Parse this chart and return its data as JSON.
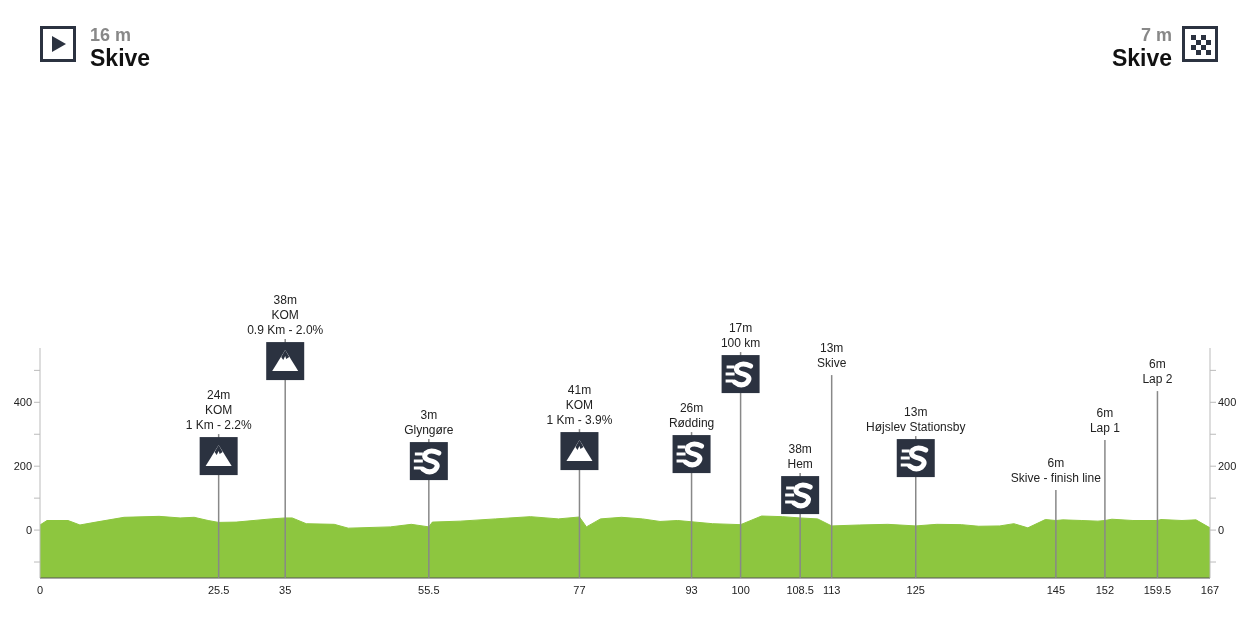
{
  "chart_data": {
    "type": "area",
    "color": "#8dc63f",
    "x": [
      0,
      1,
      4,
      5.7,
      8,
      12,
      17,
      20,
      22,
      24,
      25.5,
      28,
      33,
      35,
      36,
      38,
      42,
      44,
      50,
      53,
      55.5,
      56,
      60,
      65,
      70,
      74,
      77,
      78,
      80,
      83,
      86,
      88.5,
      91,
      93,
      96,
      100,
      103,
      106,
      108.5,
      111,
      113,
      117,
      121,
      125,
      128,
      131.5,
      134,
      137,
      139,
      141,
      143.5,
      145,
      146,
      148.7,
      151,
      152,
      153,
      156,
      159.5,
      160,
      163,
      165,
      167
    ],
    "values": [
      16,
      30,
      30,
      16,
      25,
      40,
      43,
      38,
      40,
      30,
      24,
      25,
      35,
      38,
      38,
      20,
      18,
      6,
      10,
      18,
      10,
      25,
      28,
      35,
      42,
      35,
      41,
      10,
      35,
      40,
      35,
      27,
      30,
      26,
      20,
      17,
      44,
      42,
      38,
      35,
      13,
      16,
      18,
      13,
      18,
      17,
      12,
      13,
      20,
      7,
      33,
      30,
      32,
      30,
      28,
      30,
      34,
      30,
      30,
      33,
      30,
      32,
      7
    ],
    "xlim": [
      0,
      167
    ],
    "xticks": [
      0,
      25.5,
      35,
      55.5,
      77,
      93,
      100,
      108.5,
      113,
      125,
      145,
      152,
      159.5,
      167
    ],
    "ylim": [
      -150,
      570
    ],
    "yticks": [
      {
        "value": -100,
        "label": null
      },
      0,
      {
        "value": 100,
        "label": null
      },
      200,
      {
        "value": 300,
        "label": null
      },
      400,
      {
        "value": 500,
        "label": null
      }
    ],
    "y2lim": [
      -150,
      570
    ],
    "y2ticks": [
      {
        "value": -100,
        "label": null
      },
      0,
      {
        "value": 100,
        "label": null
      },
      200,
      {
        "value": 300,
        "label": null
      },
      400,
      {
        "value": 500,
        "label": null
      }
    ],
    "annotations": [
      "16 m",
      "Skive",
      "7 m",
      "Skive"
    ],
    "bands": [
      {
        "axis": "y",
        "from": -150,
        "to": 0,
        "color": "#8dc63f"
      }
    ],
    "ref_lines": [
      {
        "axis": "x",
        "value": 25.5,
        "label": "24m\nKOM\n1 Km - 2.2%"
      },
      {
        "axis": "x",
        "value": 35,
        "label": "38m\nKOM\n0.9 Km - 2.0%"
      },
      {
        "axis": "x",
        "value": 55.5,
        "label": "3m\nGlyngøre"
      },
      {
        "axis": "x",
        "value": 77,
        "label": "41m\nKOM\n1 Km - 3.9%"
      },
      {
        "axis": "x",
        "value": 93,
        "label": "26m\nRødding"
      },
      {
        "axis": "x",
        "value": 100,
        "label": "17m\n100 km"
      },
      {
        "axis": "x",
        "value": 108.5,
        "label": "38m\nHem"
      },
      {
        "axis": "x",
        "value": 113,
        "label": "13m\nSkive"
      },
      {
        "axis": "x",
        "value": 125,
        "label": "13m\nHøjslev Stationsby"
      },
      {
        "axis": "x",
        "value": 145,
        "label": "6m\nSkive - finish line"
      },
      {
        "axis": "x",
        "value": 152,
        "label": "6m\nLap 1"
      },
      {
        "axis": "x",
        "value": 159.5,
        "label": "6m\nLap 2"
      }
    ]
  }
}
